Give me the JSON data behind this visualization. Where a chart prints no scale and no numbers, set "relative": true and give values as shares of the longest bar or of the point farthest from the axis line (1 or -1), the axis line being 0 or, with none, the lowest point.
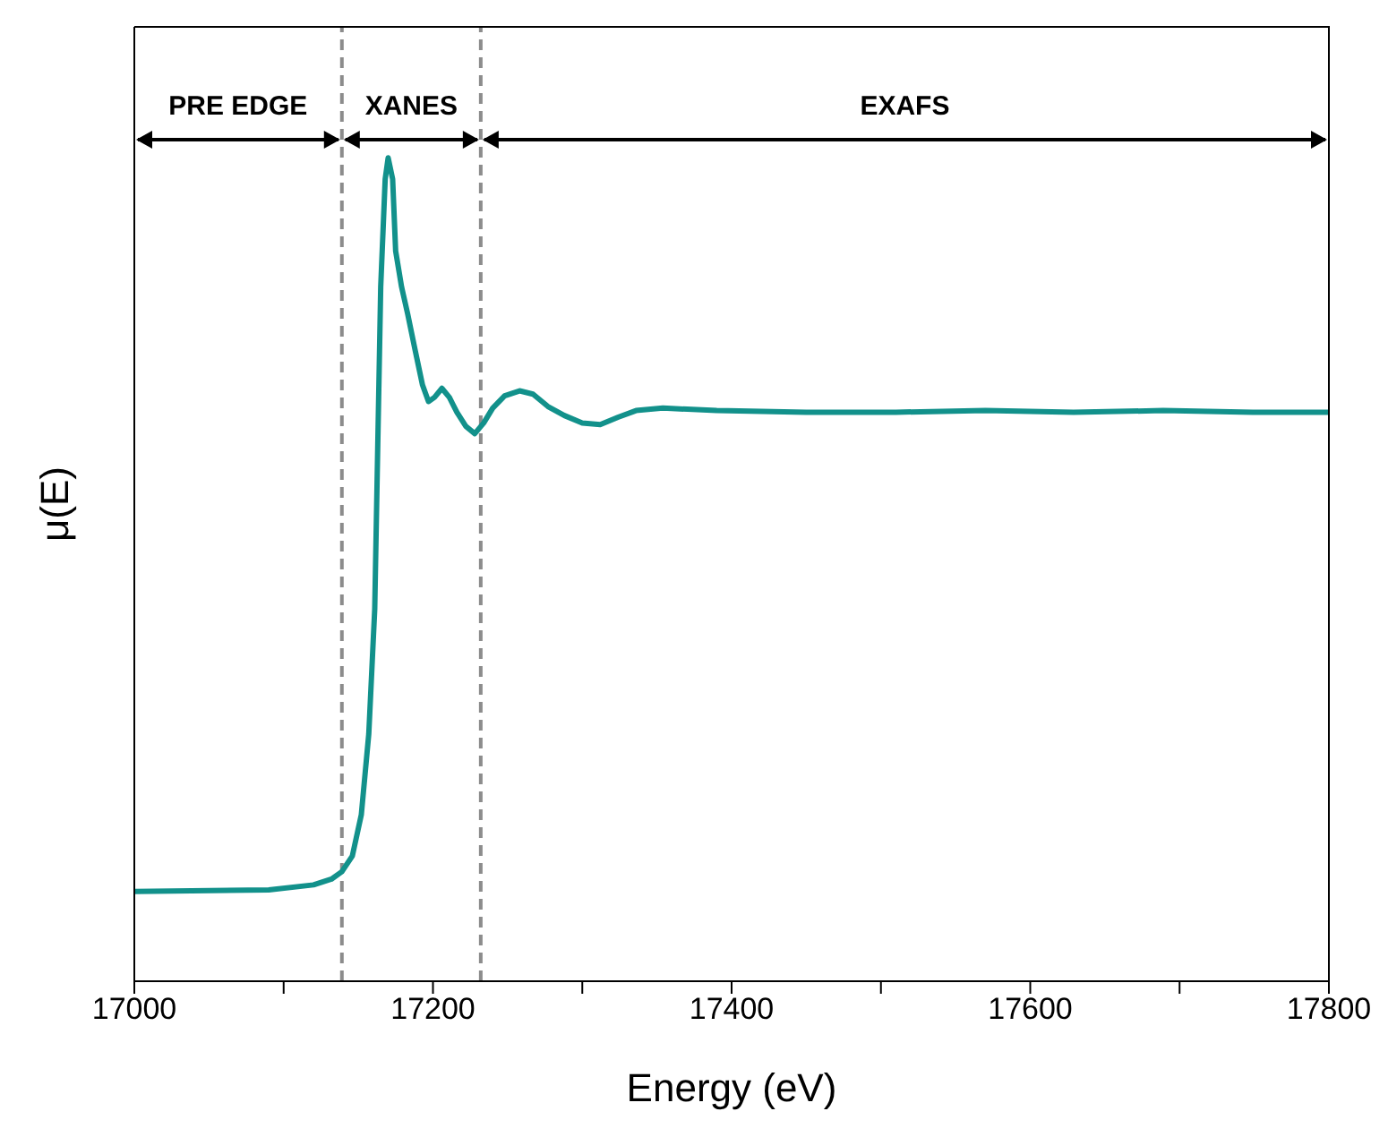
{
  "chart_data": {
    "type": "line",
    "xlabel": "Energy (eV)",
    "ylabel": "μ(E)",
    "relative": true,
    "xlim": [
      17000,
      17800
    ],
    "xticks": [
      17000,
      {
        "value": 17100,
        "label": null
      },
      17200,
      {
        "value": 17300,
        "label": null
      },
      17400,
      {
        "value": 17500,
        "label": null
      },
      17600,
      {
        "value": 17700,
        "label": null
      },
      17800
    ],
    "series": [
      {
        "color": "#12918b",
        "x": [
          17000,
          17090,
          17120,
          17132,
          17139,
          17146,
          17152,
          17157,
          17161,
          17163,
          17165,
          17168,
          17170,
          17173,
          17175,
          17179,
          17183,
          17188,
          17193,
          17197,
          17201,
          17206,
          17211,
          17216,
          17222,
          17228,
          17234,
          17240,
          17248,
          17258,
          17267,
          17277,
          17288,
          17300,
          17312,
          17324,
          17336,
          17354,
          17390,
          17450,
          17510,
          17570,
          17629,
          17689,
          17749,
          17800
        ],
        "values": [
          0.109,
          0.111,
          0.117,
          0.124,
          0.133,
          0.152,
          0.202,
          0.3,
          0.452,
          0.648,
          0.843,
          0.974,
          1.0,
          0.974,
          0.887,
          0.843,
          0.811,
          0.767,
          0.724,
          0.704,
          0.709,
          0.72,
          0.709,
          0.691,
          0.674,
          0.665,
          0.678,
          0.696,
          0.711,
          0.717,
          0.713,
          0.698,
          0.687,
          0.678,
          0.676,
          0.685,
          0.693,
          0.696,
          0.693,
          0.691,
          0.691,
          0.693,
          0.691,
          0.693,
          0.691,
          0.691
        ]
      }
    ],
    "ref_lines": [
      {
        "axis": "x",
        "value": 17139,
        "color": "#8c8c8c",
        "line_style": "dashed"
      },
      {
        "axis": "x",
        "value": 17232,
        "color": "#8c8c8c",
        "line_style": "dashed"
      }
    ],
    "annotations": [
      "PRE EDGE",
      "XANES",
      "EXAFS"
    ]
  }
}
